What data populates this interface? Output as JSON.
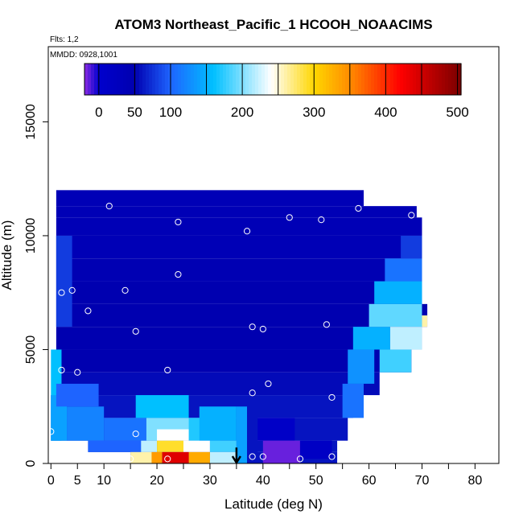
{
  "chart_data": {
    "type": "heatmap",
    "title": "ATOM3 Northeast_Pacific_1 HCOOH_NOAACIMS",
    "flights_label": "Flts: 1,2",
    "dates_label": "MMDD: 0928,1001",
    "xlabel": "Latitude (deg N)",
    "ylabel": "Altitude (m)",
    "xlim": [
      0,
      85
    ],
    "ylim": [
      0,
      17500
    ],
    "x_ticks": [
      0,
      5,
      10,
      20,
      30,
      40,
      50,
      60,
      70,
      80
    ],
    "x_tick_labels": [
      "0",
      "5",
      "10",
      "20",
      "30",
      "40",
      "50",
      "60",
      "70",
      "80"
    ],
    "y_ticks": [
      0,
      5000,
      10000,
      15000
    ],
    "y_tick_labels": [
      "0",
      "5000",
      "10000",
      "15000"
    ],
    "colorbar": {
      "min": -20,
      "max": 505,
      "ticks": [
        0,
        50,
        100,
        200,
        300,
        400,
        500
      ],
      "tick_labels": [
        "0",
        "50",
        "100",
        "200",
        "300",
        "400",
        "500"
      ],
      "colors": [
        "#8a2be2",
        "#0000cd",
        "#0000b0",
        "#1e64ff",
        "#00c0ff",
        "#ffffff",
        "#ffd700",
        "#ff8c00",
        "#ff0000",
        "#b00000",
        "#7a0000"
      ],
      "color_stops": [
        -20,
        0,
        50,
        100,
        160,
        240,
        300,
        350,
        420,
        470,
        505
      ]
    },
    "field_cells": [
      {
        "x0": 1,
        "x1": 59,
        "y0": 11300,
        "y1": 12000,
        "value": 40
      },
      {
        "x0": 1,
        "x1": 69,
        "y0": 10800,
        "y1": 11300,
        "value": 40
      },
      {
        "x0": 1,
        "x1": 70,
        "y0": 10000,
        "y1": 10800,
        "value": 40
      },
      {
        "x0": 1,
        "x1": 70,
        "y0": 9000,
        "y1": 10000,
        "value": 40
      },
      {
        "x0": 1,
        "x1": 70,
        "y0": 8000,
        "y1": 9000,
        "value": 45
      },
      {
        "x0": 1,
        "x1": 70,
        "y0": 7000,
        "y1": 8000,
        "value": 50
      },
      {
        "x0": 1,
        "x1": 71,
        "y0": 6000,
        "y1": 7000,
        "value": 50
      },
      {
        "x0": 1,
        "x1": 70,
        "y0": 5000,
        "y1": 6000,
        "value": 50
      },
      {
        "x0": 1,
        "x1": 68,
        "y0": 4000,
        "y1": 5000,
        "value": 50
      },
      {
        "x0": 1,
        "x1": 62,
        "y0": 3000,
        "y1": 4000,
        "value": 55
      },
      {
        "x0": 0,
        "x1": 57,
        "y0": 2000,
        "y1": 3000,
        "value": 60
      },
      {
        "x0": 0,
        "x1": 56,
        "y0": 1000,
        "y1": 2000,
        "value": 60
      },
      {
        "x0": 7,
        "x1": 54,
        "y0": 500,
        "y1": 1000,
        "value": 60
      },
      {
        "x0": 15,
        "x1": 54,
        "y0": 0,
        "y1": 500,
        "value": 60
      },
      {
        "x0": 0,
        "x1": 2,
        "y0": 1000,
        "y1": 5000,
        "value": 160
      },
      {
        "x0": 0,
        "x1": 3,
        "y0": 1000,
        "y1": 3000,
        "value": 140
      },
      {
        "x0": 3,
        "x1": 10,
        "y0": 1000,
        "y1": 2500,
        "value": 120
      },
      {
        "x0": 10,
        "x1": 18,
        "y0": 1000,
        "y1": 2000,
        "value": 110
      },
      {
        "x0": 1,
        "x1": 9,
        "y0": 2500,
        "y1": 3500,
        "value": 100
      },
      {
        "x0": 1,
        "x1": 4,
        "y0": 6000,
        "y1": 10000,
        "value": 80
      },
      {
        "x0": 7,
        "x1": 20,
        "y0": 500,
        "y1": 1000,
        "value": 100
      },
      {
        "x0": 16,
        "x1": 26,
        "y0": 2000,
        "y1": 3000,
        "value": 160
      },
      {
        "x0": 18,
        "x1": 28,
        "y0": 1000,
        "y1": 2000,
        "value": 200
      },
      {
        "x0": 20,
        "x1": 28,
        "y0": 1000,
        "y1": 1500,
        "value": 240
      },
      {
        "x0": 26,
        "x1": 32,
        "y0": 1000,
        "y1": 2000,
        "value": 170
      },
      {
        "x0": 28,
        "x1": 35,
        "y0": 1000,
        "y1": 2500,
        "value": 150
      },
      {
        "x0": 17,
        "x1": 20,
        "y0": 500,
        "y1": 1000,
        "value": 220
      },
      {
        "x0": 20,
        "x1": 25,
        "y0": 500,
        "y1": 1000,
        "value": 290
      },
      {
        "x0": 25,
        "x1": 30,
        "y0": 500,
        "y1": 1000,
        "value": 240
      },
      {
        "x0": 30,
        "x1": 35,
        "y0": 500,
        "y1": 1000,
        "value": 180
      },
      {
        "x0": 15,
        "x1": 19,
        "y0": 0,
        "y1": 500,
        "value": 260
      },
      {
        "x0": 19,
        "x1": 21,
        "y0": 0,
        "y1": 500,
        "value": 340
      },
      {
        "x0": 21,
        "x1": 26,
        "y0": 0,
        "y1": 500,
        "value": 440
      },
      {
        "x0": 26,
        "x1": 30,
        "y0": 0,
        "y1": 500,
        "value": 330
      },
      {
        "x0": 30,
        "x1": 35,
        "y0": 0,
        "y1": 500,
        "value": 220
      },
      {
        "x0": 35,
        "x1": 37,
        "y0": 0,
        "y1": 2500,
        "value": 140
      },
      {
        "x0": 37,
        "x1": 39,
        "y0": 0,
        "y1": 2500,
        "value": 60
      },
      {
        "x0": 39,
        "x1": 46,
        "y0": 1000,
        "y1": 2000,
        "value": 10
      },
      {
        "x0": 40,
        "x1": 47,
        "y0": 0,
        "y1": 1000,
        "value": -15
      },
      {
        "x0": 47,
        "x1": 53,
        "y0": 200,
        "y1": 1000,
        "value": 15
      },
      {
        "x0": 55,
        "x1": 59,
        "y0": 2000,
        "y1": 3500,
        "value": 110
      },
      {
        "x0": 56,
        "x1": 61,
        "y0": 3500,
        "y1": 5000,
        "value": 130
      },
      {
        "x0": 57,
        "x1": 64,
        "y0": 5000,
        "y1": 6000,
        "value": 150
      },
      {
        "x0": 62,
        "x1": 68,
        "y0": 4000,
        "y1": 5000,
        "value": 180
      },
      {
        "x0": 60,
        "x1": 70,
        "y0": 6000,
        "y1": 7000,
        "value": 190
      },
      {
        "x0": 64,
        "x1": 70,
        "y0": 5000,
        "y1": 6000,
        "value": 220
      },
      {
        "x0": 70,
        "x1": 71,
        "y0": 6000,
        "y1": 6500,
        "value": 260
      },
      {
        "x0": 61,
        "x1": 70,
        "y0": 7000,
        "y1": 8000,
        "value": 150
      },
      {
        "x0": 63,
        "x1": 70,
        "y0": 8000,
        "y1": 9000,
        "value": 110
      },
      {
        "x0": 66,
        "x1": 70,
        "y0": 9000,
        "y1": 10000,
        "value": 80
      }
    ],
    "sample_points": [
      {
        "x": 11,
        "y": 11300
      },
      {
        "x": 24,
        "y": 10600
      },
      {
        "x": 37,
        "y": 10200
      },
      {
        "x": 45,
        "y": 10800
      },
      {
        "x": 51,
        "y": 10700
      },
      {
        "x": 58,
        "y": 11200
      },
      {
        "x": 68,
        "y": 10900
      },
      {
        "x": 24,
        "y": 8300
      },
      {
        "x": 2,
        "y": 7500
      },
      {
        "x": 4,
        "y": 7600
      },
      {
        "x": 14,
        "y": 7600
      },
      {
        "x": 7,
        "y": 6700
      },
      {
        "x": 16,
        "y": 5800
      },
      {
        "x": 38,
        "y": 6000
      },
      {
        "x": 40,
        "y": 5900
      },
      {
        "x": 52,
        "y": 6100
      },
      {
        "x": 2,
        "y": 4100
      },
      {
        "x": 5,
        "y": 4000
      },
      {
        "x": 22,
        "y": 4100
      },
      {
        "x": 41,
        "y": 3500
      },
      {
        "x": 38,
        "y": 3100
      },
      {
        "x": 53,
        "y": 2900
      },
      {
        "x": 0,
        "y": 1400
      },
      {
        "x": 16,
        "y": 1300
      },
      {
        "x": 23,
        "y": 1300
      },
      {
        "x": 15,
        "y": 200
      },
      {
        "x": 22,
        "y": 200
      },
      {
        "x": 38,
        "y": 300
      },
      {
        "x": 40,
        "y": 300
      },
      {
        "x": 47,
        "y": 200
      },
      {
        "x": 53,
        "y": 300
      }
    ],
    "marker_arrow": {
      "x": 35,
      "y_top": 700,
      "y_bottom": 0
    }
  }
}
